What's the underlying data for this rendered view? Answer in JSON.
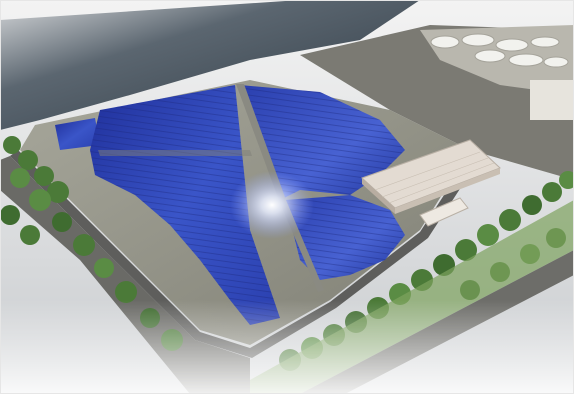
{
  "image": {
    "subject": "solar-power-plant-aerial-rendering",
    "palette": {
      "sea": "#3e4a55",
      "panel": "#2f46b8",
      "panel_light": "#6f86e6",
      "ground": "#8f8e84",
      "road": "#6b6b6b",
      "tree": "#4e7f3b",
      "building": "#d9d2c8"
    }
  }
}
